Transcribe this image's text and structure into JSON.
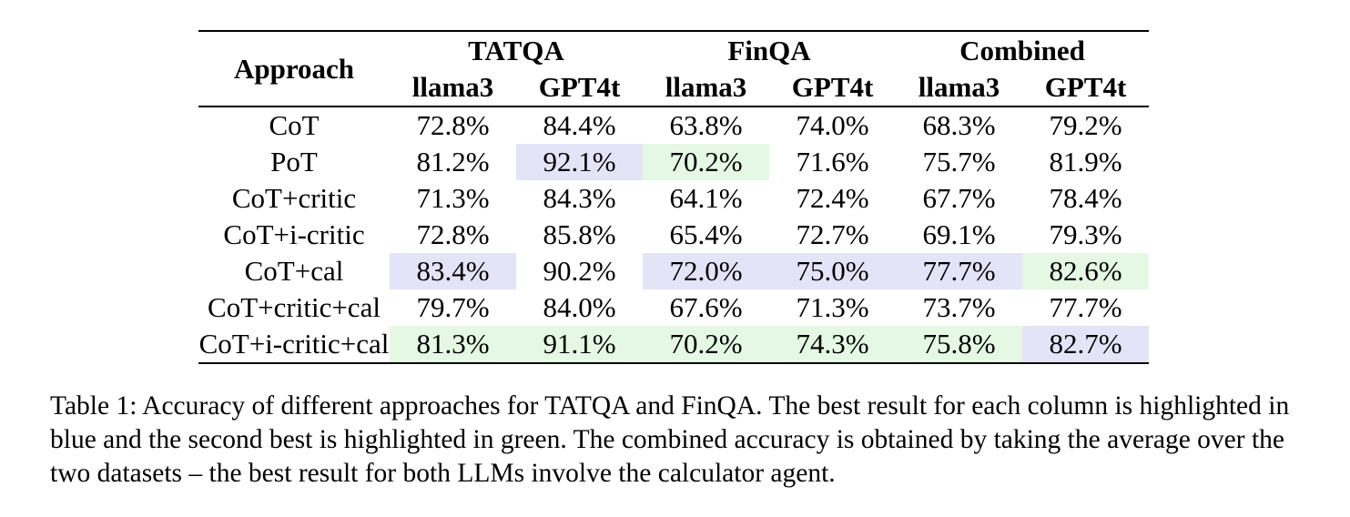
{
  "colors": {
    "best_highlight": "#e4e4f8",
    "second_highlight": "#e4f8e4",
    "text": "#000000",
    "background": "#ffffff"
  },
  "table": {
    "approach_header": "Approach",
    "groups": [
      "TATQA",
      "FinQA",
      "Combined"
    ],
    "sub_headers": [
      "llama3",
      "GPT4t",
      "llama3",
      "GPT4t",
      "llama3",
      "GPT4t"
    ],
    "rows": [
      {
        "approach": "CoT",
        "values": [
          "72.8%",
          "84.4%",
          "63.8%",
          "74.0%",
          "68.3%",
          "79.2%"
        ],
        "cell_classes": [
          null,
          null,
          null,
          null,
          null,
          null
        ]
      },
      {
        "approach": "PoT",
        "values": [
          "81.2%",
          "92.1%",
          "70.2%",
          "71.6%",
          "75.7%",
          "81.9%"
        ],
        "cell_classes": [
          null,
          "best",
          "second",
          null,
          null,
          null
        ]
      },
      {
        "approach": "CoT+critic",
        "values": [
          "71.3%",
          "84.3%",
          "64.1%",
          "72.4%",
          "67.7%",
          "78.4%"
        ],
        "cell_classes": [
          null,
          null,
          null,
          null,
          null,
          null
        ]
      },
      {
        "approach": "CoT+i-critic",
        "values": [
          "72.8%",
          "85.8%",
          "65.4%",
          "72.7%",
          "69.1%",
          "79.3%"
        ],
        "cell_classes": [
          null,
          null,
          null,
          null,
          null,
          null
        ]
      },
      {
        "approach": "CoT+cal",
        "values": [
          "83.4%",
          "90.2%",
          "72.0%",
          "75.0%",
          "77.7%",
          "82.6%"
        ],
        "cell_classes": [
          "best",
          null,
          "best",
          "best",
          "best",
          "second"
        ]
      },
      {
        "approach": "CoT+critic+cal",
        "values": [
          "79.7%",
          "84.0%",
          "67.6%",
          "71.3%",
          "73.7%",
          "77.7%"
        ],
        "cell_classes": [
          null,
          null,
          null,
          null,
          null,
          null
        ]
      },
      {
        "approach": "CoT+i-critic+cal",
        "values": [
          "81.3%",
          "91.1%",
          "70.2%",
          "74.3%",
          "75.8%",
          "82.7%"
        ],
        "cell_classes": [
          "second",
          "second",
          "second",
          "second",
          "second",
          "best"
        ]
      }
    ]
  },
  "caption": {
    "lines": [
      "Table 1: Accuracy of different approaches for TATQA and FinQA. The best result for each column is highlighted in",
      "blue and the second best is highlighted in green. The combined accuracy is obtained by taking the average over the",
      "two datasets – the best result for both LLMs involve the calculator agent."
    ]
  }
}
